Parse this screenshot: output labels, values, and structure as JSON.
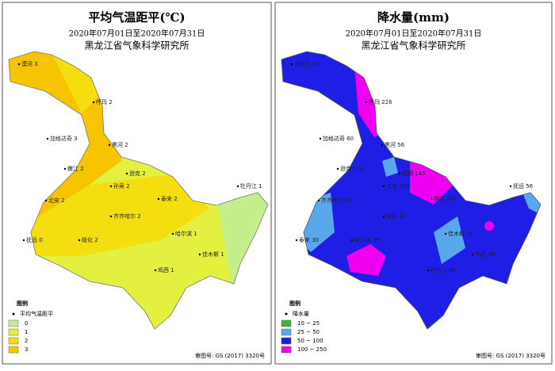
{
  "panels": [
    {
      "title": "平均气温距平(℃)",
      "date": "2020年07月01日至2020年07月31日",
      "org": "黑龙江省气象科学研究所",
      "legend_title": "图例",
      "legend_point": "平均气温距平",
      "legend_items": [
        {
          "label": "0",
          "color": "#c4ee8c"
        },
        {
          "label": "1",
          "color": "#e4f040"
        },
        {
          "label": "2",
          "color": "#f4de10"
        },
        {
          "label": "3",
          "color": "#f6c400"
        }
      ],
      "stations": [
        "漠河 3",
        "呼玛 2",
        "加格达奇 3",
        "黑河 2",
        "嫩江 2",
        "逊克 2",
        "孙吴 2",
        "北安 2",
        "齐齐哈尔 2",
        "绥化 2",
        "哈尔滨 1",
        "佳木斯 1",
        "鸡西 1",
        "牡丹江 1",
        "抚远 0",
        "泰来 2"
      ],
      "review": "审图号: GS (2017) 3320号"
    },
    {
      "title": "降水量(mm)",
      "date": "2020年07月01日至2020年07月31日",
      "org": "黑龙江省气象科学研究所",
      "legend_title": "图例",
      "legend_point": "降水量",
      "legend_items": [
        {
          "label": "10 ~ 25",
          "color": "#3cb43c"
        },
        {
          "label": "25 ~ 50",
          "color": "#5aa8ec"
        },
        {
          "label": "50 ~ 100",
          "color": "#1e1ee6"
        },
        {
          "label": "100 ~ 250",
          "color": "#f000f0"
        }
      ],
      "stations": [
        "北极村 67",
        "呼玛 226",
        "加格达奇 60",
        "黑河 56",
        "逊克 172",
        "嘉荫 145",
        "北安 100",
        "齐齐哈尔 42",
        "绥化 47",
        "哈尔滨 99",
        "佳木斯 72",
        "鸡西 34",
        "牡丹江 66",
        "抚远 56",
        "泰来 30",
        "伊春 100"
      ],
      "review": "审图号: GS (2017) 3320号"
    }
  ]
}
